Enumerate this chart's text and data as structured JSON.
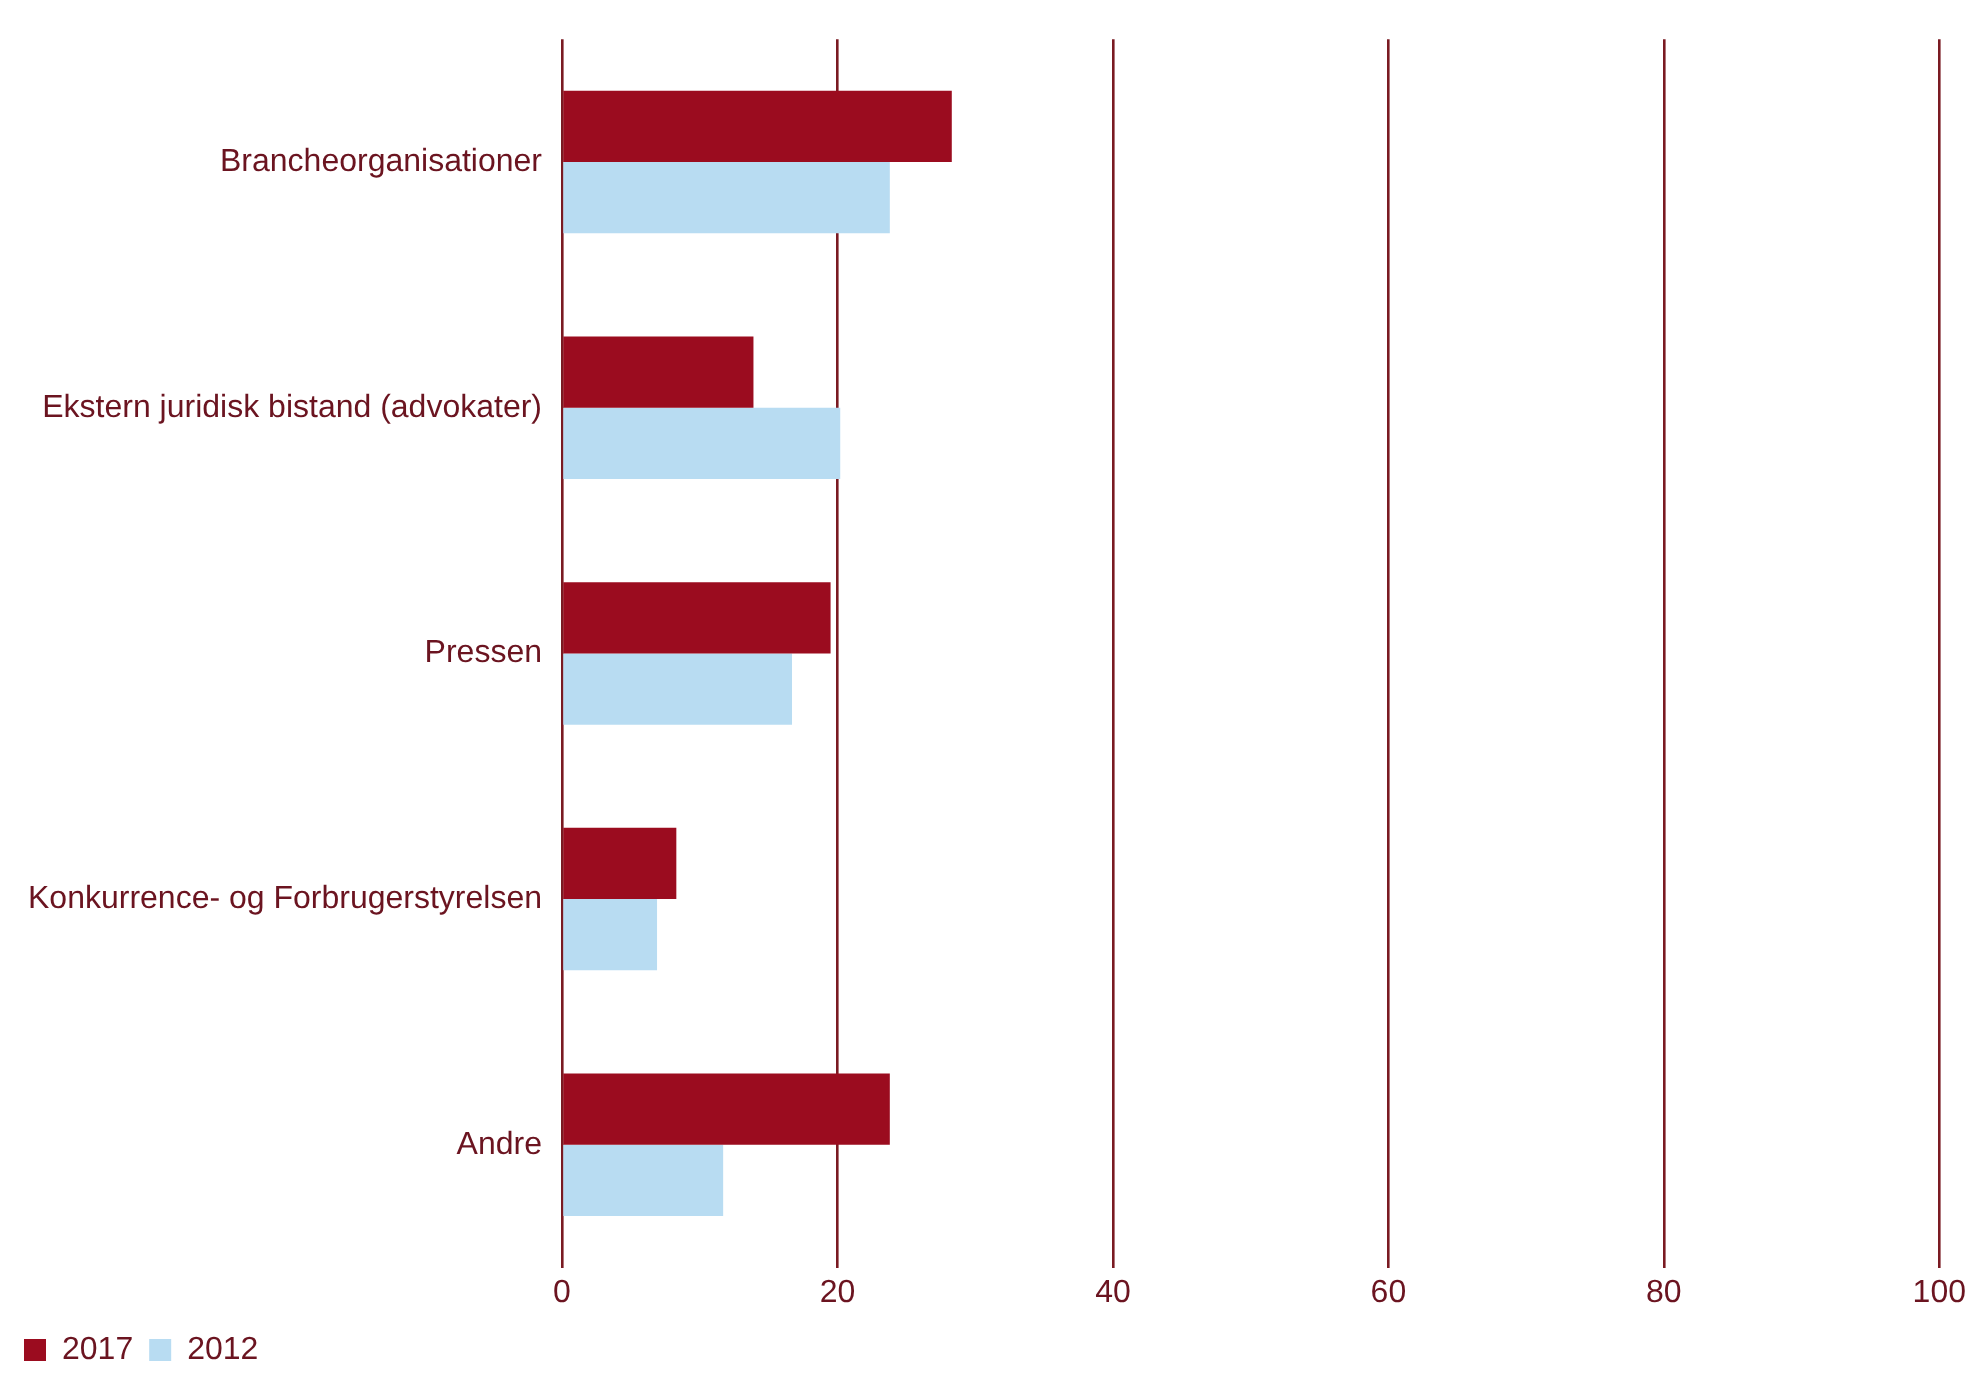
{
  "chart_data": {
    "type": "bar",
    "orientation": "horizontal",
    "categories": [
      "Brancheorganisationer",
      "Ekstern juridisk bistand (advokater)",
      "Pressen",
      "Konkurrence- og Forbrugerstyrelsen",
      "Andre"
    ],
    "series": [
      {
        "name": "2017",
        "color": "#9b0c1f",
        "values": [
          28.3,
          13.9,
          19.5,
          8.3,
          23.8
        ]
      },
      {
        "name": "2012",
        "color": "#b8dcf2",
        "values": [
          23.8,
          20.2,
          16.7,
          6.9,
          11.7
        ]
      }
    ],
    "xlim": [
      0,
      100
    ],
    "xticks": [
      0,
      20,
      40,
      60,
      80,
      100
    ],
    "grid": "x",
    "legend": "bottom left"
  }
}
